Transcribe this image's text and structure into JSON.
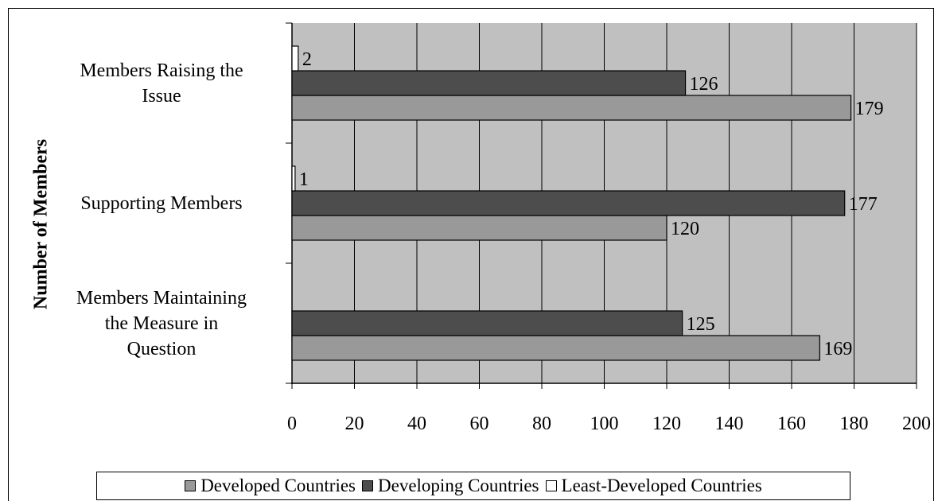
{
  "chart_data": {
    "type": "bar",
    "orientation": "horizontal",
    "ylabel": "Number of Members",
    "categories": [
      "Members Raising the Issue",
      "Supporting Members",
      "Members Maintaining the Measure in Question"
    ],
    "category_label_lines": [
      [
        "Members Raising the",
        "Issue"
      ],
      [
        "Supporting Members"
      ],
      [
        "Members Maintaining",
        "the Measure in",
        "Question"
      ]
    ],
    "series": [
      {
        "name": "Developed Countries",
        "values": [
          179,
          120,
          169
        ],
        "color": "#999999"
      },
      {
        "name": "Developing Countries",
        "values": [
          126,
          177,
          125
        ],
        "color": "#4d4d4d"
      },
      {
        "name": "Least-Developed Countries",
        "values": [
          2,
          1,
          null
        ],
        "color": "#ffffff"
      }
    ],
    "xlim": [
      0,
      200
    ],
    "xticks": [
      0,
      20,
      40,
      60,
      80,
      100,
      120,
      140,
      160,
      180,
      200
    ],
    "grid": true,
    "plot_background": "#c0c0c0",
    "legend_position": "bottom"
  }
}
